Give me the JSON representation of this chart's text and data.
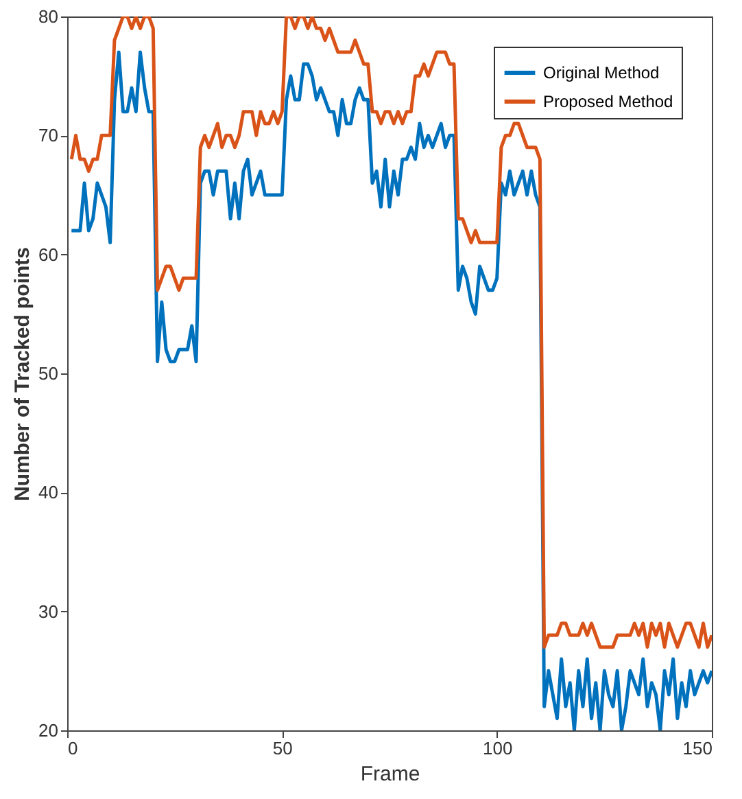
{
  "chart_data": {
    "type": "line",
    "xlabel": "Frame",
    "ylabel": "Number of Tracked points",
    "xlim": [
      0,
      150
    ],
    "xticks": [
      0,
      50,
      100,
      150
    ],
    "ylim": [
      20,
      80
    ],
    "yticks": [
      20,
      30,
      40,
      50,
      60,
      70,
      80
    ],
    "grid": false,
    "legend": "top right",
    "line_style": "solid",
    "x": [
      1,
      2,
      3,
      4,
      5,
      6,
      7,
      8,
      9,
      10,
      11,
      12,
      13,
      14,
      15,
      16,
      17,
      18,
      19,
      20,
      21,
      22,
      23,
      24,
      25,
      26,
      27,
      28,
      29,
      30,
      31,
      32,
      33,
      34,
      35,
      36,
      37,
      38,
      39,
      40,
      41,
      42,
      43,
      44,
      45,
      46,
      47,
      48,
      49,
      50,
      51,
      52,
      53,
      54,
      55,
      56,
      57,
      58,
      59,
      60,
      61,
      62,
      63,
      64,
      65,
      66,
      67,
      68,
      69,
      70,
      71,
      72,
      73,
      74,
      75,
      76,
      77,
      78,
      79,
      80,
      81,
      82,
      83,
      84,
      85,
      86,
      87,
      88,
      89,
      90,
      91,
      92,
      93,
      94,
      95,
      96,
      97,
      98,
      99,
      100,
      101,
      102,
      103,
      104,
      105,
      106,
      107,
      108,
      109,
      110,
      111,
      112,
      113,
      114,
      115,
      116,
      117,
      118,
      119,
      120,
      121,
      122,
      123,
      124,
      125,
      126,
      127,
      128,
      129,
      130,
      131,
      132,
      133,
      134,
      135,
      136,
      137,
      138,
      139,
      140,
      141,
      142,
      143,
      144,
      145,
      146,
      147,
      148,
      149,
      150
    ],
    "series": [
      {
        "name": "Original Method",
        "color": "#0072bd",
        "values": [
          62,
          62,
          62,
          66,
          62,
          63,
          66,
          65,
          64,
          61,
          73,
          77,
          72,
          72,
          74,
          72,
          77,
          74,
          72,
          72,
          51,
          56,
          52,
          51,
          51,
          52,
          52,
          52,
          54,
          51,
          66,
          67,
          67,
          65,
          67,
          67,
          67,
          63,
          66,
          63,
          67,
          68,
          65,
          66,
          67,
          65,
          65,
          65,
          65,
          65,
          73,
          75,
          73,
          73,
          76,
          76,
          75,
          73,
          74,
          73,
          72,
          72,
          70,
          73,
          71,
          71,
          73,
          74,
          73,
          73,
          66,
          67,
          64,
          68,
          64,
          67,
          65,
          68,
          68,
          69,
          68,
          71,
          69,
          70,
          69,
          70,
          71,
          69,
          70,
          70,
          57,
          59,
          58,
          56,
          55,
          59,
          58,
          57,
          57,
          58,
          66,
          65,
          67,
          65,
          66,
          67,
          65,
          67,
          65,
          64,
          22,
          25,
          23,
          21,
          26,
          22,
          24,
          20,
          25,
          22,
          26,
          21,
          24,
          20,
          25,
          23,
          22,
          25,
          20,
          22,
          25,
          24,
          23,
          26,
          22,
          24,
          23,
          20,
          25,
          23,
          26,
          21,
          24,
          22,
          25,
          23,
          24,
          25,
          24,
          25
        ]
      },
      {
        "name": "Proposed Method",
        "color": "#d95319",
        "values": [
          68,
          70,
          68,
          68,
          67,
          68,
          68,
          70,
          70,
          70,
          78,
          79,
          80,
          80,
          79,
          80,
          79,
          80,
          80,
          79,
          57,
          58,
          59,
          59,
          58,
          57,
          58,
          58,
          58,
          58,
          69,
          70,
          69,
          70,
          71,
          69,
          70,
          70,
          69,
          70,
          72,
          72,
          72,
          70,
          72,
          71,
          71,
          72,
          71,
          72,
          80,
          80,
          79,
          80,
          80,
          79,
          80,
          79,
          79,
          78,
          79,
          78,
          77,
          77,
          77,
          77,
          78,
          77,
          76,
          76,
          72,
          72,
          71,
          72,
          72,
          71,
          72,
          71,
          72,
          72,
          75,
          75,
          76,
          75,
          76,
          77,
          77,
          77,
          76,
          76,
          63,
          63,
          62,
          61,
          62,
          61,
          61,
          61,
          61,
          61,
          69,
          70,
          70,
          71,
          71,
          70,
          69,
          69,
          69,
          68,
          27,
          28,
          28,
          28,
          29,
          29,
          28,
          28,
          28,
          29,
          28,
          29,
          28,
          27,
          27,
          27,
          27,
          28,
          28,
          28,
          28,
          29,
          28,
          29,
          27,
          29,
          28,
          29,
          27,
          29,
          28,
          27,
          28,
          29,
          29,
          28,
          27,
          29,
          27,
          28
        ]
      }
    ]
  }
}
